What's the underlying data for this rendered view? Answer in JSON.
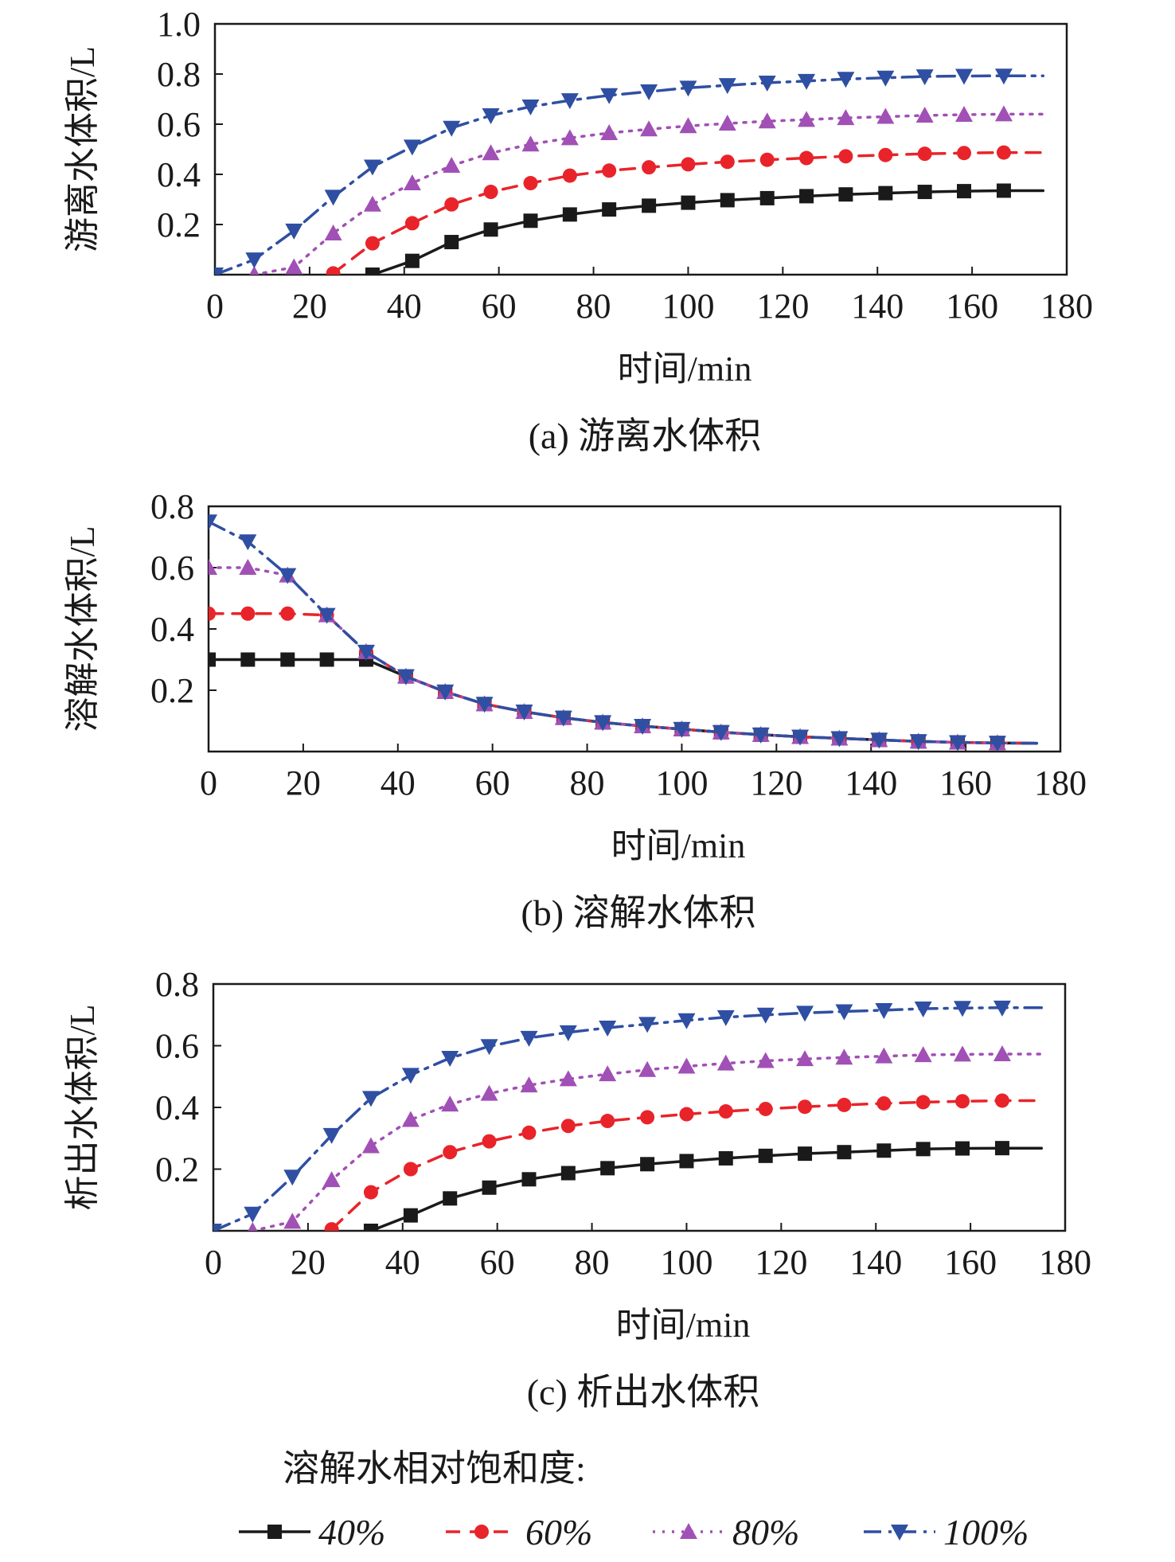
{
  "series_meta": [
    {
      "name": "40%",
      "color": "#1a1a1a",
      "dash": "",
      "marker": "square"
    },
    {
      "name": "60%",
      "color": "#e8242a",
      "dash": "18,12",
      "marker": "circle"
    },
    {
      "name": "80%",
      "color": "#a150b5",
      "dash": "3,9",
      "marker": "triangle-up"
    },
    {
      "name": "100%",
      "color": "#2f4fa2",
      "dash": "22,9,4,9",
      "marker": "triangle-down"
    }
  ],
  "legend": {
    "title": "溶解水相对饱和度:"
  },
  "chart_data": [
    {
      "type": "line",
      "caption": "(a) 游离水体积",
      "ylabel": "游离水体积/L",
      "xlabel": "时间/min",
      "xlim": [
        0,
        180
      ],
      "ylim": [
        0,
        1.0
      ],
      "xticks": [
        "0",
        "20",
        "40",
        "60",
        "80",
        "100",
        "120",
        "140",
        "160",
        "180"
      ],
      "yticks": [
        "1.0",
        "0.8",
        "0.6",
        "0.4",
        "0.2"
      ],
      "x": [
        0,
        8.3,
        16.7,
        25,
        33.3,
        41.7,
        50,
        58.3,
        66.7,
        75,
        83.3,
        91.7,
        100,
        108.3,
        116.7,
        125,
        133.3,
        141.7,
        150,
        158.3,
        166.7,
        175
      ],
      "series": [
        {
          "name": "40%",
          "values": [
            null,
            null,
            null,
            null,
            0.0,
            0.055,
            0.13,
            0.18,
            0.215,
            0.24,
            0.26,
            0.275,
            0.287,
            0.297,
            0.305,
            0.313,
            0.32,
            0.325,
            0.33,
            0.333,
            0.335,
            0.335
          ]
        },
        {
          "name": "60%",
          "values": [
            null,
            null,
            null,
            0.005,
            0.125,
            0.205,
            0.28,
            0.33,
            0.365,
            0.395,
            0.415,
            0.428,
            0.44,
            0.45,
            0.458,
            0.465,
            0.472,
            0.477,
            0.482,
            0.485,
            0.487,
            0.487
          ]
        },
        {
          "name": "80%",
          "values": [
            null,
            0.0,
            0.03,
            0.165,
            0.28,
            0.365,
            0.435,
            0.485,
            0.52,
            0.545,
            0.565,
            0.58,
            0.593,
            0.603,
            0.612,
            0.618,
            0.625,
            0.63,
            0.635,
            0.638,
            0.64,
            0.64
          ]
        },
        {
          "name": "100%",
          "values": [
            0.0,
            0.06,
            0.175,
            0.31,
            0.43,
            0.51,
            0.585,
            0.635,
            0.67,
            0.695,
            0.715,
            0.73,
            0.745,
            0.755,
            0.765,
            0.772,
            0.78,
            0.785,
            0.79,
            0.792,
            0.793,
            0.793
          ]
        }
      ]
    },
    {
      "type": "line",
      "caption": "(b) 溶解水体积",
      "ylabel": "溶解水体积/L",
      "xlabel": "时间/min",
      "xlim": [
        0,
        180
      ],
      "ylim": [
        0,
        0.8
      ],
      "xticks": [
        "0",
        "20",
        "40",
        "60",
        "80",
        "100",
        "120",
        "140",
        "160",
        "180"
      ],
      "yticks": [
        "0.8",
        "0.6",
        "0.4",
        "0.2"
      ],
      "x": [
        0,
        8.3,
        16.7,
        25,
        33.3,
        41.7,
        50,
        58.3,
        66.7,
        75,
        83.3,
        91.7,
        100,
        108.3,
        116.7,
        125,
        133.3,
        141.7,
        150,
        158.3,
        166.7,
        175
      ],
      "series": [
        {
          "name": "40%",
          "values": [
            0.3,
            0.3,
            0.3,
            0.3,
            0.3,
            0.245,
            0.195,
            0.155,
            0.13,
            0.11,
            0.095,
            0.083,
            0.073,
            0.063,
            0.055,
            0.048,
            0.043,
            0.038,
            0.033,
            0.03,
            0.028,
            0.027
          ]
        },
        {
          "name": "60%",
          "values": [
            0.45,
            0.45,
            0.45,
            0.445,
            0.325,
            0.245,
            0.195,
            0.155,
            0.13,
            0.11,
            0.095,
            0.083,
            0.073,
            0.063,
            0.055,
            0.048,
            0.043,
            0.038,
            0.033,
            0.03,
            0.028,
            0.027
          ]
        },
        {
          "name": "80%",
          "values": [
            0.6,
            0.6,
            0.575,
            0.445,
            0.325,
            0.245,
            0.195,
            0.155,
            0.13,
            0.11,
            0.095,
            0.083,
            0.073,
            0.063,
            0.055,
            0.048,
            0.043,
            0.038,
            0.033,
            0.03,
            0.028,
            0.027
          ]
        },
        {
          "name": "100%",
          "values": [
            0.75,
            0.685,
            0.575,
            0.445,
            0.325,
            0.245,
            0.195,
            0.155,
            0.13,
            0.11,
            0.095,
            0.083,
            0.073,
            0.063,
            0.055,
            0.048,
            0.043,
            0.038,
            0.033,
            0.03,
            0.028,
            0.027
          ]
        }
      ]
    },
    {
      "type": "line",
      "caption": "(c) 析出水体积",
      "ylabel": "析出水体积/L",
      "xlabel": "时间/min",
      "xlim": [
        0,
        180
      ],
      "ylim": [
        0,
        0.8
      ],
      "xticks": [
        "0",
        "20",
        "40",
        "60",
        "80",
        "100",
        "120",
        "140",
        "160",
        "180"
      ],
      "yticks": [
        "0.8",
        "0.6",
        "0.4",
        "0.2"
      ],
      "x": [
        0,
        8.3,
        16.7,
        25,
        33.3,
        41.7,
        50,
        58.3,
        66.7,
        75,
        83.3,
        91.7,
        100,
        108.3,
        116.7,
        125,
        133.3,
        141.7,
        150,
        158.3,
        166.7,
        175
      ],
      "series": [
        {
          "name": "40%",
          "values": [
            null,
            null,
            null,
            null,
            0.0,
            0.05,
            0.105,
            0.14,
            0.167,
            0.187,
            0.203,
            0.216,
            0.226,
            0.235,
            0.243,
            0.25,
            0.255,
            0.26,
            0.265,
            0.267,
            0.268,
            0.268
          ]
        },
        {
          "name": "60%",
          "values": [
            null,
            null,
            null,
            0.005,
            0.125,
            0.2,
            0.255,
            0.29,
            0.318,
            0.34,
            0.356,
            0.368,
            0.378,
            0.387,
            0.395,
            0.402,
            0.408,
            0.413,
            0.417,
            0.42,
            0.422,
            0.422
          ]
        },
        {
          "name": "80%",
          "values": [
            null,
            0.0,
            0.03,
            0.165,
            0.275,
            0.36,
            0.41,
            0.445,
            0.472,
            0.492,
            0.508,
            0.522,
            0.533,
            0.543,
            0.551,
            0.557,
            0.562,
            0.566,
            0.57,
            0.572,
            0.573,
            0.573
          ]
        },
        {
          "name": "100%",
          "values": [
            0.0,
            0.055,
            0.175,
            0.31,
            0.43,
            0.505,
            0.56,
            0.598,
            0.625,
            0.643,
            0.658,
            0.67,
            0.682,
            0.692,
            0.7,
            0.706,
            0.711,
            0.715,
            0.72,
            0.722,
            0.723,
            0.723
          ]
        }
      ]
    }
  ]
}
